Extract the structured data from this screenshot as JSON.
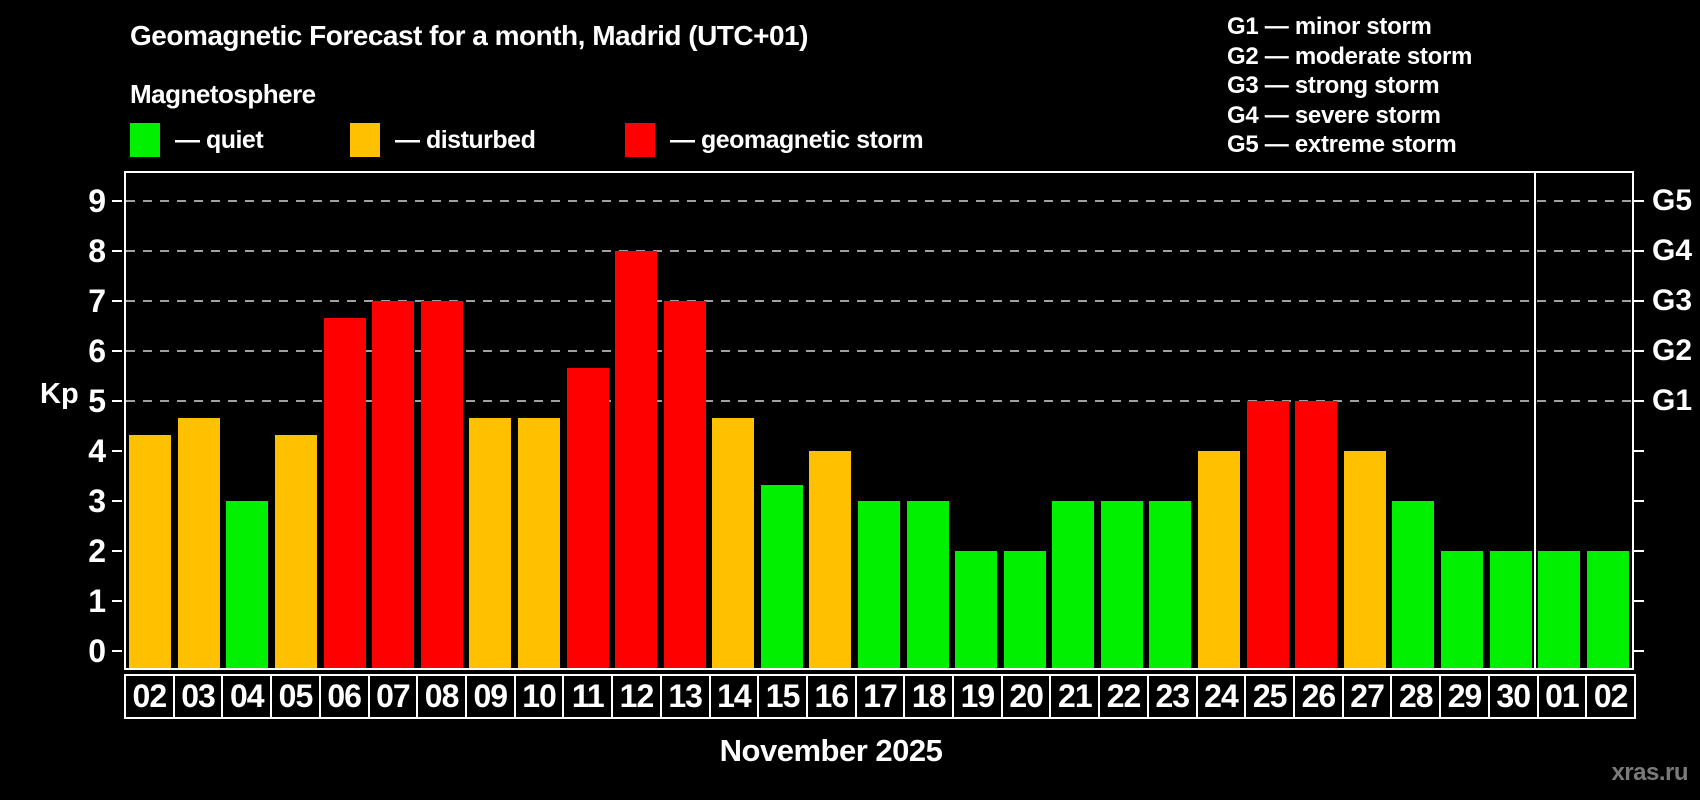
{
  "header": {
    "title": "Geomagnetic Forecast for a month, Madrid (UTC+01)",
    "subtitle": "Magnetosphere"
  },
  "legend": {
    "items": [
      {
        "key": "quiet",
        "label": "— quiet",
        "color": "#00f000"
      },
      {
        "key": "disturbed",
        "label": "— disturbed",
        "color": "#ffc000"
      },
      {
        "key": "storm",
        "label": "— geomagnetic storm",
        "color": "#ff0000"
      }
    ]
  },
  "g_legend": {
    "items": [
      "G1 — minor storm",
      "G2 — moderate storm",
      "G3 — strong storm",
      "G4 — severe storm",
      "G5 — extreme storm"
    ]
  },
  "chart_data": {
    "type": "bar",
    "title": "Geomagnetic Forecast for a month, Madrid (UTC+01)",
    "subtitle": "Magnetosphere",
    "ylabel": "Kp",
    "xlabel": "November 2025",
    "ylim": [
      0,
      9.5
    ],
    "yticks": [
      0,
      1,
      2,
      3,
      4,
      5,
      6,
      7,
      8,
      9
    ],
    "gridlines_at": [
      5,
      6,
      7,
      8,
      9
    ],
    "grid": "dashed horizontal at storm levels only",
    "legend_position": "top-left",
    "right_axis": [
      {
        "value": 5,
        "label": "G1"
      },
      {
        "value": 6,
        "label": "G2"
      },
      {
        "value": 7,
        "label": "G3"
      },
      {
        "value": 8,
        "label": "G4"
      },
      {
        "value": 9,
        "label": "G5"
      }
    ],
    "categories": [
      "02",
      "03",
      "04",
      "05",
      "06",
      "07",
      "08",
      "09",
      "10",
      "11",
      "12",
      "13",
      "14",
      "15",
      "16",
      "17",
      "18",
      "19",
      "20",
      "21",
      "22",
      "23",
      "24",
      "25",
      "26",
      "27",
      "28",
      "29",
      "30",
      "01",
      "02"
    ],
    "values": [
      4.33,
      4.67,
      3,
      4.33,
      6.67,
      7,
      7,
      4.67,
      4.67,
      5.67,
      8,
      7,
      4.67,
      3.33,
      4,
      3,
      3,
      2,
      2,
      3,
      3,
      3,
      4,
      5,
      5,
      4,
      3,
      2,
      2,
      2,
      2
    ],
    "kinds": [
      "disturbed",
      "disturbed",
      "quiet",
      "disturbed",
      "storm",
      "storm",
      "storm",
      "disturbed",
      "disturbed",
      "storm",
      "storm",
      "storm",
      "disturbed",
      "quiet",
      "disturbed",
      "quiet",
      "quiet",
      "quiet",
      "quiet",
      "quiet",
      "quiet",
      "quiet",
      "disturbed",
      "storm",
      "storm",
      "disturbed",
      "quiet",
      "quiet",
      "quiet",
      "quiet",
      "quiet"
    ],
    "color_map": {
      "quiet": "#00f000",
      "disturbed": "#ffc000",
      "storm": "#ff0000"
    },
    "month_separator_after_index": 28
  },
  "footer": {
    "watermark": "xras.ru"
  }
}
